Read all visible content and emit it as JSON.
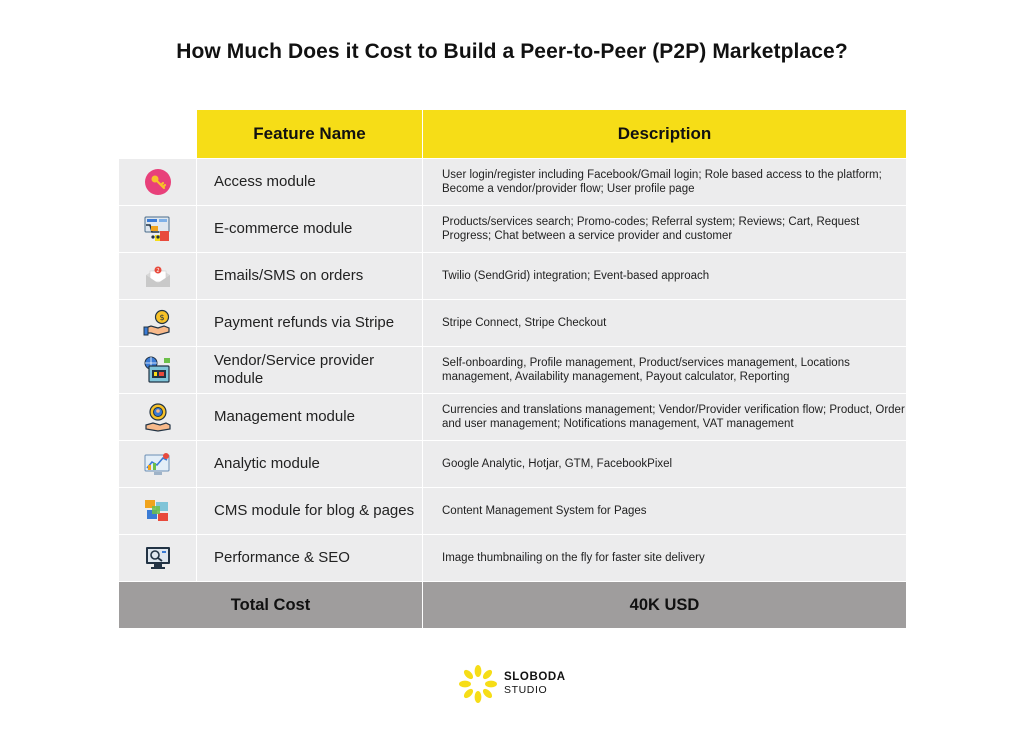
{
  "title": "How Much Does it Cost to Build a Peer-to-Peer (P2P) Marketplace?",
  "table": {
    "headers": {
      "feature": "Feature Name",
      "description": "Description"
    },
    "rows": [
      {
        "icon": "key-icon",
        "feature": "Access module",
        "description": "User login/register including Facebook/Gmail login; Role based access to the platform; Become a vendor/provider flow; User profile page"
      },
      {
        "icon": "shopping-icon",
        "feature": "E-commerce module",
        "description": "Products/services search; Promo-codes; Referral system; Reviews; Cart, Request Progress; Chat between a service provider and customer"
      },
      {
        "icon": "email-icon",
        "feature": "Emails/SMS on orders",
        "description": "Twilio (SendGrid) integration; Event-based approach"
      },
      {
        "icon": "payment-icon",
        "feature": "Payment refunds via Stripe",
        "description": "Stripe Connect, Stripe Checkout"
      },
      {
        "icon": "vendor-icon",
        "feature": "Vendor/Service provider module",
        "description": "Self-onboarding, Profile management, Product/services management, Locations management, Availability management, Payout calculator, Reporting"
      },
      {
        "icon": "management-icon",
        "feature": "Management module",
        "description": "Currencies and translations management; Vendor/Provider verification flow; Product, Order and user management; Notifications management, VAT management"
      },
      {
        "icon": "analytics-icon",
        "feature": "Analytic module",
        "description": "Google Analytic, Hotjar, GTM, FacebookPixel"
      },
      {
        "icon": "cms-icon",
        "feature": "CMS module for blog & pages",
        "description": "Content Management System for Pages"
      },
      {
        "icon": "seo-icon",
        "feature": "Performance & SEO",
        "description": "Image thumbnailing on the fly for faster site delivery"
      }
    ],
    "total": {
      "label": "Total Cost",
      "value": "40K USD"
    }
  },
  "logo": {
    "line1": "SLOBODA",
    "line2": "STUDIO",
    "petal_color": "#f6dd17"
  },
  "colors": {
    "header_bg": "#f6dd17",
    "row_bg": "#ececed",
    "total_bg": "#9f9d9d"
  }
}
